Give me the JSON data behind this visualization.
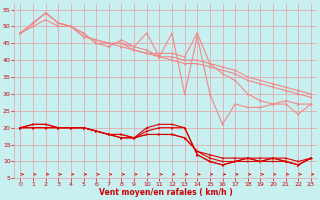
{
  "bg_color": "#c8f0f0",
  "grid_color": "#e8a0a0",
  "xlabel": "Vent moyen/en rafales ( km/h )",
  "xlabel_color": "#cc0000",
  "tick_color": "#cc0000",
  "xlim": [
    -0.5,
    23.5
  ],
  "ylim": [
    5,
    57
  ],
  "yticks": [
    5,
    10,
    15,
    20,
    25,
    30,
    35,
    40,
    45,
    50,
    55
  ],
  "xticks": [
    0,
    1,
    2,
    3,
    4,
    5,
    6,
    7,
    8,
    9,
    10,
    11,
    12,
    13,
    14,
    15,
    16,
    17,
    18,
    19,
    20,
    21,
    22,
    23
  ],
  "series_upper": [
    [
      48,
      51,
      54,
      51,
      50,
      47,
      46,
      45,
      44,
      43,
      42,
      41,
      40,
      39,
      39,
      38,
      37,
      36,
      34,
      33,
      32,
      31,
      30,
      29
    ],
    [
      48,
      51,
      54,
      51,
      50,
      48,
      45,
      44,
      46,
      44,
      48,
      41,
      48,
      30,
      47,
      30,
      21,
      27,
      26,
      26,
      27,
      27,
      24,
      27
    ],
    [
      48,
      50,
      52,
      50,
      50,
      47,
      46,
      45,
      45,
      43,
      42,
      42,
      42,
      41,
      48,
      39,
      36,
      34,
      30,
      28,
      27,
      28,
      27,
      27
    ],
    [
      48,
      51,
      54,
      51,
      50,
      48,
      45,
      45,
      45,
      44,
      43,
      41,
      41,
      40,
      40,
      39,
      38,
      37,
      35,
      34,
      33,
      32,
      31,
      30
    ]
  ],
  "series_lower": [
    [
      20,
      21,
      21,
      20,
      20,
      20,
      19,
      18,
      18,
      17,
      20,
      21,
      21,
      20,
      12,
      10,
      9,
      10,
      11,
      10,
      11,
      10,
      9,
      11
    ],
    [
      20,
      20,
      20,
      20,
      20,
      20,
      19,
      18,
      17,
      17,
      18,
      18,
      18,
      17,
      13,
      11,
      10,
      10,
      10,
      10,
      10,
      10,
      9,
      11
    ],
    [
      20,
      20,
      20,
      20,
      20,
      20,
      19,
      18,
      17,
      17,
      18,
      18,
      18,
      17,
      13,
      12,
      11,
      11,
      11,
      11,
      11,
      11,
      10,
      11
    ],
    [
      20,
      21,
      21,
      20,
      20,
      20,
      19,
      18,
      18,
      17,
      19,
      20,
      20,
      20,
      12,
      10,
      9,
      10,
      11,
      10,
      11,
      10,
      9,
      11
    ]
  ],
  "color_upper": "#f08888",
  "color_lower": "#dd0000",
  "linewidth_upper": 0.8,
  "linewidth_lower": 0.8,
  "markersize": 1.8
}
